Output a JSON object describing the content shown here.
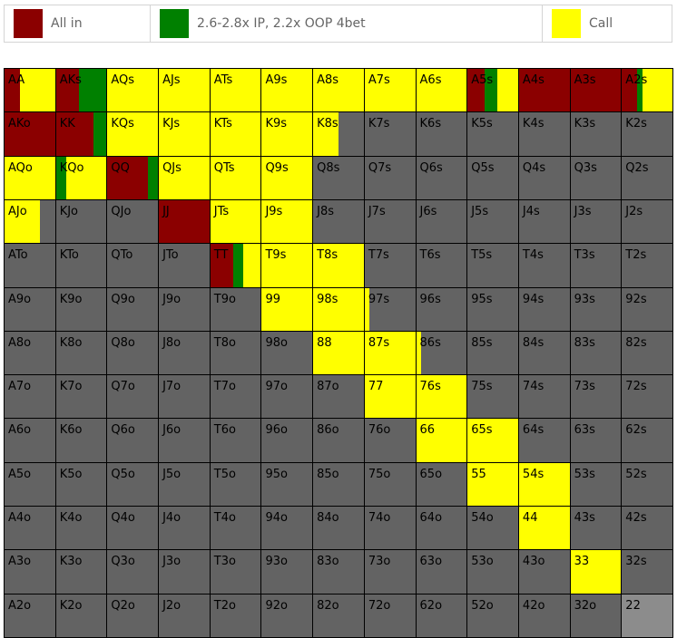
{
  "legend": [
    {
      "label": "All in",
      "color": "#8b0000"
    },
    {
      "label": "2.6-2.8x IP, 2.2x OOP 4bet",
      "color": "#008000"
    },
    {
      "label": "Call",
      "color": "#ffff00"
    }
  ],
  "fold_color": "#636363",
  "empty_color": "#8c8c8c",
  "hands": [
    [
      "AA",
      "AKs",
      "AQs",
      "AJs",
      "ATs",
      "A9s",
      "A8s",
      "A7s",
      "A6s",
      "A5s",
      "A4s",
      "A3s",
      "A2s"
    ],
    [
      "AKo",
      "KK",
      "KQs",
      "KJs",
      "KTs",
      "K9s",
      "K8s",
      "K7s",
      "K6s",
      "K5s",
      "K4s",
      "K3s",
      "K2s"
    ],
    [
      "AQo",
      "KQo",
      "QQ",
      "QJs",
      "QTs",
      "Q9s",
      "Q8s",
      "Q7s",
      "Q6s",
      "Q5s",
      "Q4s",
      "Q3s",
      "Q2s"
    ],
    [
      "AJo",
      "KJo",
      "QJo",
      "JJ",
      "JTs",
      "J9s",
      "J8s",
      "J7s",
      "J6s",
      "J5s",
      "J4s",
      "J3s",
      "J2s"
    ],
    [
      "ATo",
      "KTo",
      "QTo",
      "JTo",
      "TT",
      "T9s",
      "T8s",
      "T7s",
      "T6s",
      "T5s",
      "T4s",
      "T3s",
      "T2s"
    ],
    [
      "A9o",
      "K9o",
      "Q9o",
      "J9o",
      "T9o",
      "99",
      "98s",
      "97s",
      "96s",
      "95s",
      "94s",
      "93s",
      "92s"
    ],
    [
      "A8o",
      "K8o",
      "Q8o",
      "J8o",
      "T8o",
      "98o",
      "88",
      "87s",
      "86s",
      "85s",
      "84s",
      "83s",
      "82s"
    ],
    [
      "A7o",
      "K7o",
      "Q7o",
      "J7o",
      "T7o",
      "97o",
      "87o",
      "77",
      "76s",
      "75s",
      "74s",
      "73s",
      "72s"
    ],
    [
      "A6o",
      "K6o",
      "Q6o",
      "J6o",
      "T6o",
      "96o",
      "86o",
      "76o",
      "66",
      "65s",
      "64s",
      "63s",
      "62s"
    ],
    [
      "A5o",
      "K5o",
      "Q5o",
      "J5o",
      "T5o",
      "95o",
      "85o",
      "75o",
      "65o",
      "55",
      "54s",
      "53s",
      "52s"
    ],
    [
      "A4o",
      "K4o",
      "Q4o",
      "J4o",
      "T4o",
      "94o",
      "84o",
      "74o",
      "64o",
      "54o",
      "44",
      "43s",
      "42s"
    ],
    [
      "A3o",
      "K3o",
      "Q3o",
      "J3o",
      "T3o",
      "93o",
      "83o",
      "73o",
      "63o",
      "53o",
      "43o",
      "33",
      "32s"
    ],
    [
      "A2o",
      "K2o",
      "Q2o",
      "J2o",
      "T2o",
      "92o",
      "82o",
      "72o",
      "62o",
      "52o",
      "42o",
      "32o",
      "22"
    ]
  ],
  "actions": {
    "AA": {
      "allin": 0.3,
      "fourbet": 0.0,
      "call": 0.7
    },
    "AKs": {
      "allin": 0.45,
      "fourbet": 0.55,
      "call": 0.0
    },
    "AQs": {
      "allin": 0.0,
      "fourbet": 0.0,
      "call": 1.0
    },
    "AJs": {
      "allin": 0.0,
      "fourbet": 0.0,
      "call": 1.0
    },
    "ATs": {
      "allin": 0.0,
      "fourbet": 0.0,
      "call": 1.0
    },
    "A9s": {
      "allin": 0.0,
      "fourbet": 0.0,
      "call": 1.0
    },
    "A8s": {
      "allin": 0.0,
      "fourbet": 0.0,
      "call": 1.0
    },
    "A7s": {
      "allin": 0.0,
      "fourbet": 0.0,
      "call": 1.0
    },
    "A6s": {
      "allin": 0.0,
      "fourbet": 0.0,
      "call": 1.0
    },
    "A5s": {
      "allin": 0.33,
      "fourbet": 0.25,
      "call": 0.42
    },
    "A4s": {
      "allin": 1.0,
      "fourbet": 0.0,
      "call": 0.0
    },
    "A3s": {
      "allin": 1.0,
      "fourbet": 0.0,
      "call": 0.0
    },
    "A2s": {
      "allin": 0.3,
      "fourbet": 0.1,
      "call": 0.6
    },
    "AKo": {
      "allin": 1.0,
      "fourbet": 0.0,
      "call": 0.0
    },
    "KK": {
      "allin": 0.75,
      "fourbet": 0.25,
      "call": 0.0
    },
    "KQs": {
      "allin": 0.0,
      "fourbet": 0.0,
      "call": 1.0
    },
    "KJs": {
      "allin": 0.0,
      "fourbet": 0.0,
      "call": 1.0
    },
    "KTs": {
      "allin": 0.0,
      "fourbet": 0.0,
      "call": 1.0
    },
    "K9s": {
      "allin": 0.0,
      "fourbet": 0.0,
      "call": 1.0
    },
    "K8s": {
      "allin": 0.0,
      "fourbet": 0.0,
      "call": 0.5
    },
    "AQo": {
      "allin": 0.0,
      "fourbet": 0.0,
      "call": 1.0
    },
    "KQo": {
      "allin": 0.0,
      "fourbet": 0.2,
      "call": 0.8
    },
    "QQ": {
      "allin": 0.8,
      "fourbet": 0.2,
      "call": 0.0
    },
    "QJs": {
      "allin": 0.0,
      "fourbet": 0.0,
      "call": 1.0
    },
    "QTs": {
      "allin": 0.0,
      "fourbet": 0.0,
      "call": 1.0
    },
    "Q9s": {
      "allin": 0.0,
      "fourbet": 0.0,
      "call": 1.0
    },
    "AJo": {
      "allin": 0.0,
      "fourbet": 0.0,
      "call": 0.7
    },
    "JJ": {
      "allin": 1.0,
      "fourbet": 0.0,
      "call": 0.0
    },
    "JTs": {
      "allin": 0.0,
      "fourbet": 0.0,
      "call": 1.0
    },
    "J9s": {
      "allin": 0.0,
      "fourbet": 0.0,
      "call": 1.0
    },
    "TT": {
      "allin": 0.45,
      "fourbet": 0.2,
      "call": 0.35
    },
    "T9s": {
      "allin": 0.0,
      "fourbet": 0.0,
      "call": 1.0
    },
    "T8s": {
      "allin": 0.0,
      "fourbet": 0.0,
      "call": 1.0
    },
    "99": {
      "allin": 0.0,
      "fourbet": 0.0,
      "call": 1.0
    },
    "98s": {
      "allin": 0.0,
      "fourbet": 0.0,
      "call": 1.0
    },
    "97s": {
      "allin": 0.0,
      "fourbet": 0.0,
      "call": 0.1
    },
    "88": {
      "allin": 0.0,
      "fourbet": 0.0,
      "call": 1.0
    },
    "87s": {
      "allin": 0.0,
      "fourbet": 0.0,
      "call": 1.0
    },
    "86s": {
      "allin": 0.0,
      "fourbet": 0.0,
      "call": 0.1
    },
    "77": {
      "allin": 0.0,
      "fourbet": 0.0,
      "call": 1.0
    },
    "76s": {
      "allin": 0.0,
      "fourbet": 0.0,
      "call": 1.0
    },
    "66": {
      "allin": 0.0,
      "fourbet": 0.0,
      "call": 1.0
    },
    "65s": {
      "allin": 0.0,
      "fourbet": 0.0,
      "call": 1.0
    },
    "55": {
      "allin": 0.0,
      "fourbet": 0.0,
      "call": 1.0
    },
    "54s": {
      "allin": 0.0,
      "fourbet": 0.0,
      "call": 1.0
    },
    "44": {
      "allin": 0.0,
      "fourbet": 0.0,
      "call": 1.0
    },
    "33": {
      "allin": 0.0,
      "fourbet": 0.0,
      "call": 1.0
    },
    "22": {
      "allin": 0.0,
      "fourbet": 0.0,
      "call": 0.0,
      "empty": true
    }
  }
}
